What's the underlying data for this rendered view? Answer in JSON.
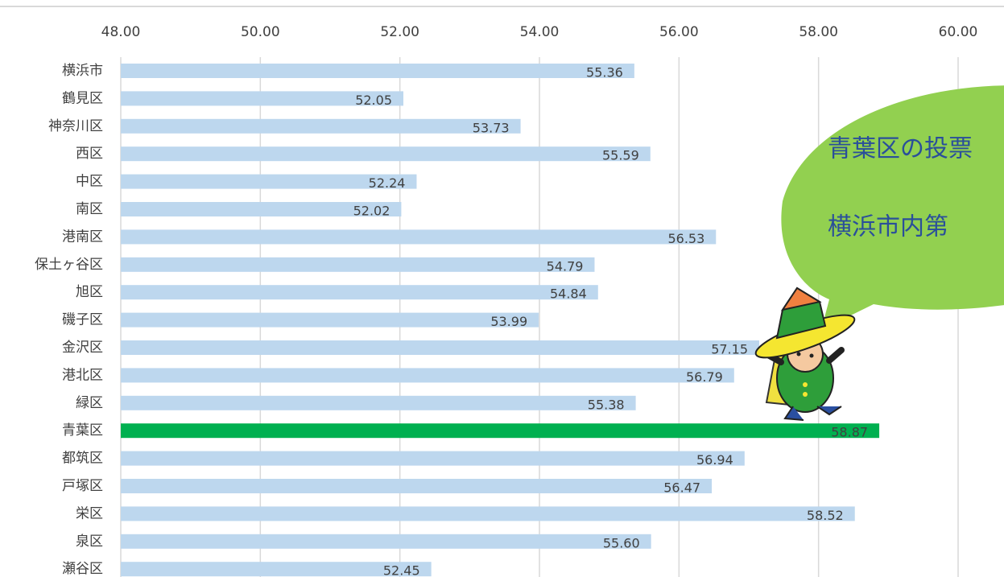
{
  "chart_data": {
    "type": "barh",
    "categories": [
      "横浜市",
      "鶴見区",
      "神奈川区",
      "西区",
      "中区",
      "南区",
      "港南区",
      "保土ヶ谷区",
      "旭区",
      "磯子区",
      "金沢区",
      "港北区",
      "緑区",
      "青葉区",
      "都筑区",
      "戸塚区",
      "栄区",
      "泉区",
      "瀬谷区"
    ],
    "values": [
      55.36,
      52.05,
      53.73,
      55.59,
      52.24,
      52.02,
      56.53,
      54.79,
      54.84,
      53.99,
      57.15,
      56.79,
      55.38,
      58.87,
      56.94,
      56.47,
      58.52,
      55.6,
      52.45
    ],
    "value_labels": [
      "55.36",
      "52.05",
      "53.73",
      "55.59",
      "52.24",
      "52.02",
      "56.53",
      "54.79",
      "54.84",
      "53.99",
      "57.15",
      "56.79",
      "55.38",
      "58.87",
      "56.94",
      "56.47",
      "58.52",
      "55.60",
      "52.45"
    ],
    "colors": [
      "#bdd7ee",
      "#bdd7ee",
      "#bdd7ee",
      "#bdd7ee",
      "#bdd7ee",
      "#bdd7ee",
      "#bdd7ee",
      "#bdd7ee",
      "#bdd7ee",
      "#bdd7ee",
      "#bdd7ee",
      "#bdd7ee",
      "#bdd7ee",
      "#00b050",
      "#bdd7ee",
      "#bdd7ee",
      "#bdd7ee",
      "#bdd7ee",
      "#bdd7ee"
    ],
    "xlim": [
      48,
      60
    ],
    "xticks": [
      {
        "value": 48,
        "label": "48.00"
      },
      {
        "value": 50,
        "label": "50.00"
      },
      {
        "value": 52,
        "label": "52.00"
      },
      {
        "value": 54,
        "label": "54.00"
      },
      {
        "value": 56,
        "label": "56.00"
      },
      {
        "value": 58,
        "label": "58.00"
      },
      {
        "value": 60,
        "label": "60.00"
      }
    ],
    "grid": true,
    "annotation": [
      "青葉区の投票",
      "横浜市内第"
    ]
  }
}
